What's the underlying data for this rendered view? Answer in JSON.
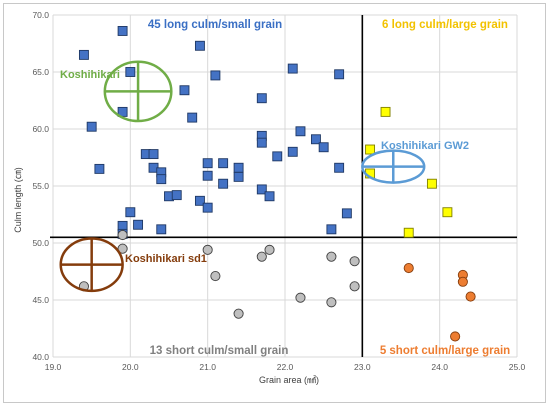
{
  "chart_data": {
    "type": "scatter",
    "xlabel": "Grain area (㎟)",
    "ylabel": "Culm length (㎝)",
    "xlim": [
      19.0,
      25.0
    ],
    "ylim": [
      40.0,
      70.0
    ],
    "x_ticks": [
      "19.0",
      "20.0",
      "21.0",
      "22.0",
      "23.0",
      "24.0",
      "25.0"
    ],
    "y_ticks": [
      "40.0",
      "45.0",
      "50.0",
      "55.0",
      "60.0",
      "65.0",
      "70.0"
    ],
    "grid": true,
    "threshold_x": 23.0,
    "threshold_y": 50.5,
    "quadrant_labels": [
      {
        "id": "long-small",
        "text": "45 long culm/small grain",
        "color": "#3a6fc4"
      },
      {
        "id": "long-large",
        "text": "6 long culm/large grain",
        "color": "#f2c200"
      },
      {
        "id": "short-small",
        "text": "13 short culm/small grain",
        "color": "#808080"
      },
      {
        "id": "short-large",
        "text": "5 short culm/large grain",
        "color": "#ed7d31"
      }
    ],
    "series": [
      {
        "id": "long-small",
        "marker": "square",
        "fill": "#4472c4",
        "stroke": "#1f3864",
        "points": [
          [
            19.4,
            66.5
          ],
          [
            19.5,
            60.2
          ],
          [
            19.6,
            56.5
          ],
          [
            19.9,
            68.6
          ],
          [
            19.9,
            61.5
          ],
          [
            19.9,
            51.5
          ],
          [
            19.9,
            50.8
          ],
          [
            20.0,
            65.0
          ],
          [
            20.0,
            52.7
          ],
          [
            20.1,
            51.6
          ],
          [
            20.2,
            57.8
          ],
          [
            20.3,
            57.8
          ],
          [
            20.3,
            56.6
          ],
          [
            20.4,
            56.2
          ],
          [
            20.4,
            55.6
          ],
          [
            20.4,
            51.2
          ],
          [
            20.5,
            54.1
          ],
          [
            20.6,
            54.2
          ],
          [
            20.7,
            63.4
          ],
          [
            20.8,
            61.0
          ],
          [
            20.9,
            67.3
          ],
          [
            20.9,
            53.7
          ],
          [
            21.0,
            57.0
          ],
          [
            21.0,
            55.9
          ],
          [
            21.0,
            53.1
          ],
          [
            21.1,
            64.7
          ],
          [
            21.2,
            57.0
          ],
          [
            21.2,
            55.2
          ],
          [
            21.4,
            56.6
          ],
          [
            21.4,
            55.8
          ],
          [
            21.7,
            62.7
          ],
          [
            21.7,
            59.4
          ],
          [
            21.7,
            58.8
          ],
          [
            21.7,
            54.7
          ],
          [
            21.8,
            54.1
          ],
          [
            21.9,
            57.6
          ],
          [
            22.1,
            65.3
          ],
          [
            22.1,
            58.0
          ],
          [
            22.2,
            59.8
          ],
          [
            22.4,
            59.1
          ],
          [
            22.5,
            58.4
          ],
          [
            22.6,
            51.2
          ],
          [
            22.7,
            64.8
          ],
          [
            22.7,
            56.6
          ],
          [
            22.8,
            52.6
          ]
        ]
      },
      {
        "id": "long-large",
        "marker": "square",
        "fill": "#ffff00",
        "stroke": "#7f7f00",
        "points": [
          [
            23.1,
            58.2
          ],
          [
            23.1,
            56.1
          ],
          [
            23.3,
            61.5
          ],
          [
            23.6,
            50.9
          ],
          [
            23.9,
            55.2
          ],
          [
            24.1,
            52.7
          ]
        ]
      },
      {
        "id": "short-small",
        "marker": "circle",
        "fill": "#bfbfbf",
        "stroke": "#404040",
        "points": [
          [
            19.4,
            46.2
          ],
          [
            19.9,
            50.7
          ],
          [
            19.9,
            49.5
          ],
          [
            21.0,
            49.4
          ],
          [
            21.1,
            47.1
          ],
          [
            21.4,
            43.8
          ],
          [
            21.7,
            48.8
          ],
          [
            21.8,
            49.4
          ],
          [
            22.2,
            45.2
          ],
          [
            22.6,
            48.8
          ],
          [
            22.6,
            44.8
          ],
          [
            22.9,
            48.4
          ],
          [
            22.9,
            46.2
          ]
        ]
      },
      {
        "id": "short-large",
        "marker": "circle",
        "fill": "#ed7d31",
        "stroke": "#843c0c",
        "points": [
          [
            23.6,
            47.8
          ],
          [
            24.2,
            41.8
          ],
          [
            24.3,
            47.2
          ],
          [
            24.3,
            46.6
          ],
          [
            24.4,
            45.3
          ]
        ]
      }
    ],
    "varieties": [
      {
        "id": "koshihikari",
        "text": "Koshihikari",
        "color": "#70ad47",
        "x": 20.1,
        "y": 63.3,
        "rx": 0.43,
        "ry": 2.6
      },
      {
        "id": "gw2",
        "text": "Koshihikari GW2",
        "color": "#5b9bd5",
        "x": 23.4,
        "y": 56.7,
        "rx": 0.4,
        "ry": 1.4
      },
      {
        "id": "sd1",
        "text": "Koshihikari sd1",
        "color": "#843c0c",
        "x": 19.5,
        "y": 48.1,
        "rx": 0.4,
        "ry": 2.3
      }
    ]
  }
}
